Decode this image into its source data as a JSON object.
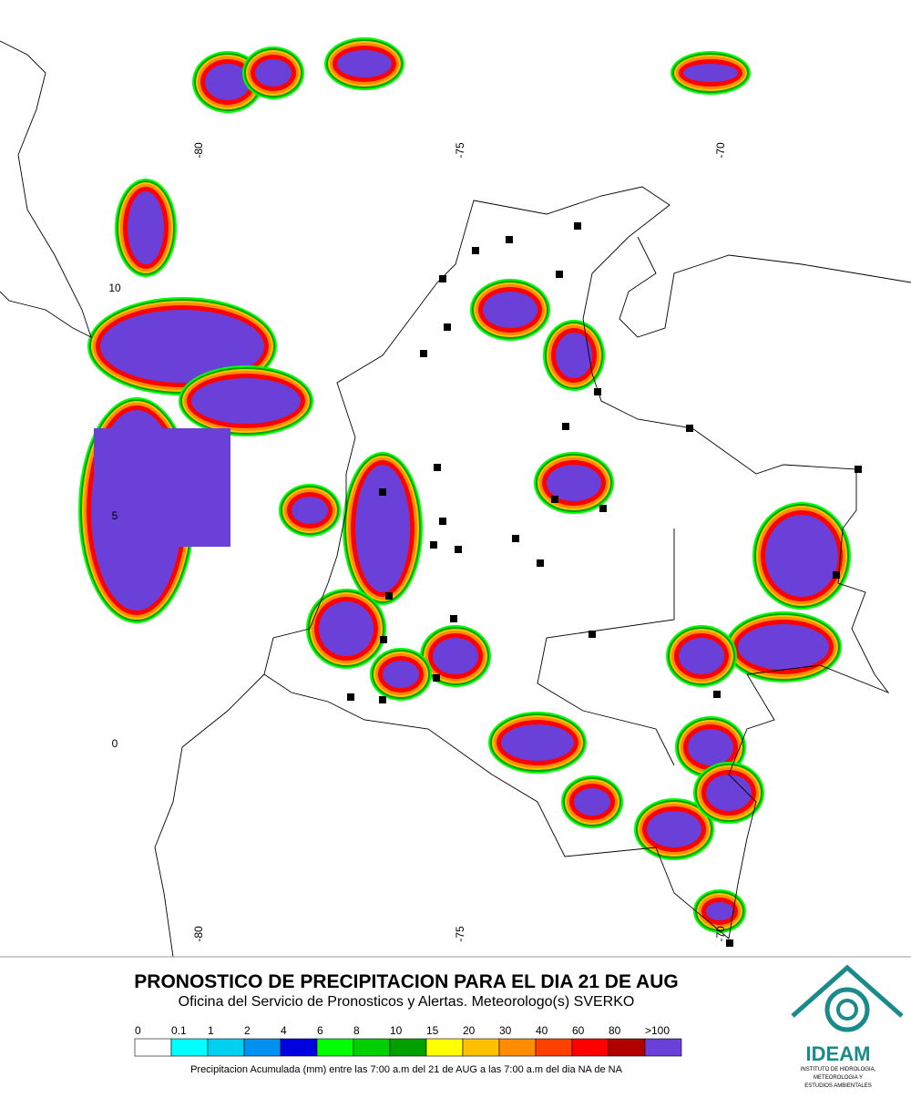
{
  "map": {
    "lon_labels_top": [
      "-80",
      "-75",
      "-70"
    ],
    "lon_labels_bottom": [
      "-80",
      "-75",
      "-70"
    ],
    "lat_labels": [
      "10",
      "5",
      "0"
    ]
  },
  "title": "PRONOSTICO DE PRECIPITACION PARA EL DIA 21 DE AUG",
  "subtitle": "Oficina del Servicio de Pronosticos y Alertas. Meteorologo(s) SVERKO",
  "legend": {
    "labels": [
      "0",
      "0.1",
      "1",
      "2",
      "4",
      "6",
      "8",
      "10",
      "15",
      "20",
      "30",
      "40",
      "60",
      "80",
      ">100"
    ],
    "colors": [
      "#ffffff",
      "#00ffff",
      "#00d0f0",
      "#0090f0",
      "#0000e0",
      "#00ff00",
      "#00d000",
      "#00a000",
      "#ffff00",
      "#ffc000",
      "#ff8c00",
      "#ff4000",
      "#ff0000",
      "#b00000",
      "#6a40d8"
    ]
  },
  "footnote": "Precipitacion Acumulada (mm) entre las 7:00 a.m del 21 de AUG a las 7:00 a.m del dia NA de NA",
  "logo": {
    "name": "IDEAM",
    "lines": [
      "INSTITUTO DE HIDROLOGIA,",
      "METEOROLOGIA Y",
      "ESTUDIOS AMBIENTALES"
    ]
  }
}
